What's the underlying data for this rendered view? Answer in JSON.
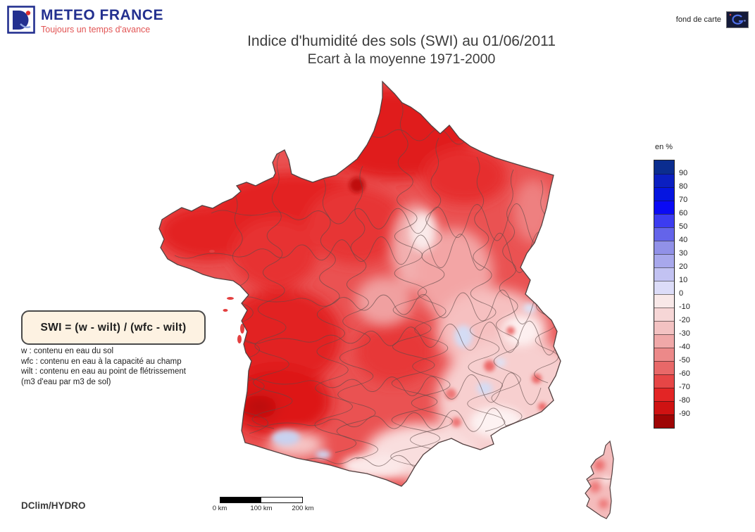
{
  "header": {
    "logo": {
      "name": "METEO FRANCE",
      "tagline": "Toujours un temps d'avance"
    },
    "basemap_label": "fond de carte",
    "title_line1": "Indice d'humidité des sols (SWI) au 01/06/2011",
    "title_line2": "Ecart à la moyenne 1971-2000"
  },
  "legend": {
    "unit_label": "en %",
    "tick_labels": [
      "90",
      "80",
      "70",
      "60",
      "50",
      "40",
      "30",
      "20",
      "10",
      "0",
      "-10",
      "-20",
      "-30",
      "-40",
      "-50",
      "-60",
      "-70",
      "-80",
      "-90"
    ],
    "colors": [
      "#0b2d8f",
      "#0b1fc1",
      "#0515e0",
      "#0a0af5",
      "#3c3cf0",
      "#6464ea",
      "#9191e8",
      "#a8a8ec",
      "#c2c2f2",
      "#dcdcf8",
      "#f8e8e8",
      "#f6d6d6",
      "#f3c2c2",
      "#f0a8a8",
      "#ec8989",
      "#e86868",
      "#e64646",
      "#e32525",
      "#cf1212",
      "#9e0505"
    ]
  },
  "formula": {
    "box_text": "SWI = (w - wilt) / (wfc - wilt)",
    "definitions": [
      "w : contenu en eau du sol",
      "wfc : contenu en eau à la capacité au champ",
      "wilt : contenu en eau au point de flétrissement",
      "(m3 d'eau par m3 de sol)"
    ]
  },
  "scalebar": {
    "labels": [
      "0 km",
      "100 km",
      "200 km"
    ]
  },
  "footer": {
    "credit": "DClim/HYDRO"
  },
  "colors": {
    "brand_blue": "#23308f",
    "brand_red": "#e25555",
    "formula_box_bg": "#fdf2e2",
    "title_text": "#3d3d3d",
    "map_outline": "#544040"
  }
}
